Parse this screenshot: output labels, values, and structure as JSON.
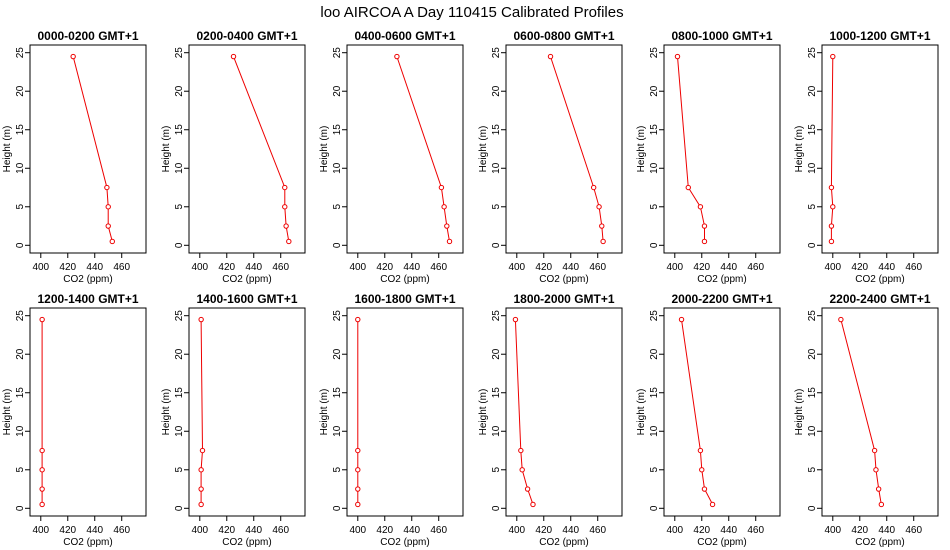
{
  "title": "loo AIRCOA A  Day 110415  Calibrated Profiles",
  "chart_data": [
    {
      "type": "line",
      "title": "0000-0200 GMT+1",
      "xlabel": "CO2 (ppm)",
      "ylabel": "Height (m)",
      "xlim": [
        392,
        478
      ],
      "ylim": [
        -1,
        26
      ],
      "x_ticks": [
        400,
        420,
        440,
        460
      ],
      "y_ticks": [
        0,
        5,
        10,
        15,
        20,
        25
      ],
      "series": [
        {
          "x": [
            453,
            450,
            450,
            449,
            424
          ],
          "y": [
            0.5,
            2.5,
            5,
            7.5,
            24.5
          ]
        }
      ]
    },
    {
      "type": "line",
      "title": "0200-0400 GMT+1",
      "xlabel": "CO2 (ppm)",
      "ylabel": "Height (m)",
      "xlim": [
        392,
        478
      ],
      "ylim": [
        -1,
        26
      ],
      "x_ticks": [
        400,
        420,
        440,
        460
      ],
      "y_ticks": [
        0,
        5,
        10,
        15,
        20,
        25
      ],
      "series": [
        {
          "x": [
            466,
            464,
            463,
            463,
            425
          ],
          "y": [
            0.5,
            2.5,
            5,
            7.5,
            24.5
          ]
        }
      ]
    },
    {
      "type": "line",
      "title": "0400-0600 GMT+1",
      "xlabel": "CO2 (ppm)",
      "ylabel": "Height (m)",
      "xlim": [
        392,
        478
      ],
      "ylim": [
        -1,
        26
      ],
      "x_ticks": [
        400,
        420,
        440,
        460
      ],
      "y_ticks": [
        0,
        5,
        10,
        15,
        20,
        25
      ],
      "series": [
        {
          "x": [
            468,
            466,
            464,
            462,
            429
          ],
          "y": [
            0.5,
            2.5,
            5,
            7.5,
            24.5
          ]
        }
      ]
    },
    {
      "type": "line",
      "title": "0600-0800 GMT+1",
      "xlabel": "CO2 (ppm)",
      "ylabel": "Height (m)",
      "xlim": [
        392,
        478
      ],
      "ylim": [
        -1,
        26
      ],
      "x_ticks": [
        400,
        420,
        440,
        460
      ],
      "y_ticks": [
        0,
        5,
        10,
        15,
        20,
        25
      ],
      "series": [
        {
          "x": [
            464,
            463,
            461,
            457,
            425
          ],
          "y": [
            0.5,
            2.5,
            5,
            7.5,
            24.5
          ]
        }
      ]
    },
    {
      "type": "line",
      "title": "0800-1000 GMT+1",
      "xlabel": "CO2 (ppm)",
      "ylabel": "Height (m)",
      "xlim": [
        392,
        478
      ],
      "ylim": [
        -1,
        26
      ],
      "x_ticks": [
        400,
        420,
        440,
        460
      ],
      "y_ticks": [
        0,
        5,
        10,
        15,
        20,
        25
      ],
      "series": [
        {
          "x": [
            422,
            422,
            419,
            410,
            402
          ],
          "y": [
            0.5,
            2.5,
            5,
            7.5,
            24.5
          ]
        }
      ]
    },
    {
      "type": "line",
      "title": "1000-1200 GMT+1",
      "xlabel": "CO2 (ppm)",
      "ylabel": "Height (m)",
      "xlim": [
        392,
        478
      ],
      "ylim": [
        -1,
        26
      ],
      "x_ticks": [
        400,
        420,
        440,
        460
      ],
      "y_ticks": [
        0,
        5,
        10,
        15,
        20,
        25
      ],
      "series": [
        {
          "x": [
            399,
            399,
            400,
            399,
            400
          ],
          "y": [
            0.5,
            2.5,
            5,
            7.5,
            24.5
          ]
        }
      ]
    },
    {
      "type": "line",
      "title": "1200-1400 GMT+1",
      "xlabel": "CO2 (ppm)",
      "ylabel": "Height (m)",
      "xlim": [
        392,
        478
      ],
      "ylim": [
        -1,
        26
      ],
      "x_ticks": [
        400,
        420,
        440,
        460
      ],
      "y_ticks": [
        0,
        5,
        10,
        15,
        20,
        25
      ],
      "series": [
        {
          "x": [
            401,
            401,
            401,
            401,
            401
          ],
          "y": [
            0.5,
            2.5,
            5,
            7.5,
            24.5
          ]
        }
      ]
    },
    {
      "type": "line",
      "title": "1400-1600 GMT+1",
      "xlabel": "CO2 (ppm)",
      "ylabel": "Height (m)",
      "xlim": [
        392,
        478
      ],
      "ylim": [
        -1,
        26
      ],
      "x_ticks": [
        400,
        420,
        440,
        460
      ],
      "y_ticks": [
        0,
        5,
        10,
        15,
        20,
        25
      ],
      "series": [
        {
          "x": [
            401,
            401,
            401,
            402,
            401
          ],
          "y": [
            0.5,
            2.5,
            5,
            7.5,
            24.5
          ]
        }
      ]
    },
    {
      "type": "line",
      "title": "1600-1800 GMT+1",
      "xlabel": "CO2 (ppm)",
      "ylabel": "Height (m)",
      "xlim": [
        392,
        478
      ],
      "ylim": [
        -1,
        26
      ],
      "x_ticks": [
        400,
        420,
        440,
        460
      ],
      "y_ticks": [
        0,
        5,
        10,
        15,
        20,
        25
      ],
      "series": [
        {
          "x": [
            400,
            400,
            400,
            400,
            400
          ],
          "y": [
            0.5,
            2.5,
            5,
            7.5,
            24.5
          ]
        }
      ]
    },
    {
      "type": "line",
      "title": "1800-2000 GMT+1",
      "xlabel": "CO2 (ppm)",
      "ylabel": "Height (m)",
      "xlim": [
        392,
        478
      ],
      "ylim": [
        -1,
        26
      ],
      "x_ticks": [
        400,
        420,
        440,
        460
      ],
      "y_ticks": [
        0,
        5,
        10,
        15,
        20,
        25
      ],
      "series": [
        {
          "x": [
            412,
            408,
            404,
            403,
            399
          ],
          "y": [
            0.5,
            2.5,
            5,
            7.5,
            24.5
          ]
        }
      ]
    },
    {
      "type": "line",
      "title": "2000-2200 GMT+1",
      "xlabel": "CO2 (ppm)",
      "ylabel": "Height (m)",
      "xlim": [
        392,
        478
      ],
      "ylim": [
        -1,
        26
      ],
      "x_ticks": [
        400,
        420,
        440,
        460
      ],
      "y_ticks": [
        0,
        5,
        10,
        15,
        20,
        25
      ],
      "series": [
        {
          "x": [
            428,
            422,
            420,
            419,
            405
          ],
          "y": [
            0.5,
            2.5,
            5,
            7.5,
            24.5
          ]
        }
      ]
    },
    {
      "type": "line",
      "title": "2200-2400 GMT+1",
      "xlabel": "CO2 (ppm)",
      "ylabel": "Height (m)",
      "xlim": [
        392,
        478
      ],
      "ylim": [
        -1,
        26
      ],
      "x_ticks": [
        400,
        420,
        440,
        460
      ],
      "y_ticks": [
        0,
        5,
        10,
        15,
        20,
        25
      ],
      "series": [
        {
          "x": [
            436,
            434,
            432,
            431,
            406
          ],
          "y": [
            0.5,
            2.5,
            5,
            7.5,
            24.5
          ]
        }
      ]
    }
  ]
}
